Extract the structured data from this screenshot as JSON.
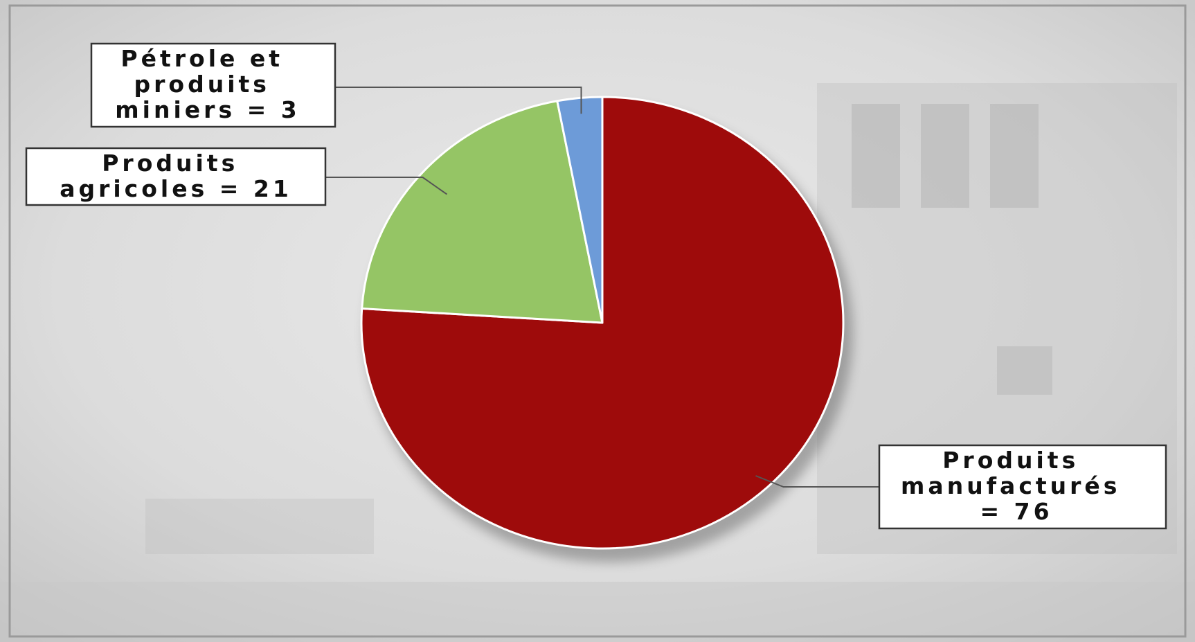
{
  "chart_data": {
    "type": "pie",
    "title": "",
    "start_angle_deg": 0,
    "direction": "clockwise",
    "slices": [
      {
        "label_lines": [
          "Produits",
          "manufacturés",
          "= 76"
        ],
        "value": 76,
        "color": "#9e0b0b"
      },
      {
        "label_lines": [
          "Produits",
          "agricoles = 21"
        ],
        "value": 21,
        "color": "#95c565"
      },
      {
        "label_lines": [
          "Pétrole et",
          "produits",
          "miniers = 3"
        ],
        "value": 3,
        "color": "#6d9bd8"
      }
    ]
  }
}
